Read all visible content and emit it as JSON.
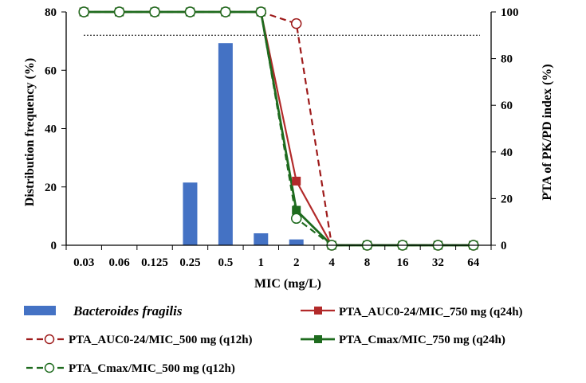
{
  "chart_data": {
    "type": "bar+line",
    "xlabel": "MIC (mg/L)",
    "ylabel_left": "Distribution  frequency (%)",
    "ylabel_right": "PTA of PK/PD index (%)",
    "categories": [
      "0.03",
      "0.06",
      "0.125",
      "0.25",
      "0.5",
      "1",
      "2",
      "4",
      "8",
      "16",
      "32",
      "64"
    ],
    "ylim_left": [
      0,
      80
    ],
    "ylim_right": [
      0,
      100
    ],
    "yticks_left": [
      "0",
      "20",
      "40",
      "60",
      "80"
    ],
    "yticks_right": [
      "0",
      "20",
      "40",
      "60",
      "80",
      "100"
    ],
    "reference_line_right": 90,
    "bar_series": {
      "name": "Bacteroides fragilis",
      "color": "#4472C4",
      "values": [
        0,
        0,
        0,
        21.5,
        69.3,
        4.1,
        2.0,
        0,
        0,
        0,
        0,
        0
      ]
    },
    "line_series": [
      {
        "name": "PTA_AUC0-24/MIC_750 mg (q24h)",
        "color": "#B22A2A",
        "dash": "solid",
        "marker": "square",
        "marker_fill": "#B22A2A",
        "values": [
          100,
          100,
          100,
          100,
          100,
          100,
          27.5,
          0,
          0,
          0,
          0,
          0
        ]
      },
      {
        "name": "PTA_AUC0-24/MIC_500 mg (q12h)",
        "color": "#9E1B1B",
        "dash": "dashed",
        "marker": "circle",
        "marker_fill": "#ffffff",
        "values": [
          100,
          100,
          100,
          100,
          100,
          100,
          95,
          0,
          0,
          0,
          0,
          0
        ]
      },
      {
        "name": "PTA_Cmax/MIC_750 mg (q24h)",
        "color": "#1E6B1E",
        "dash": "solid",
        "marker": "square",
        "marker_fill": "#1E6B1E",
        "values": [
          100,
          100,
          100,
          100,
          100,
          100,
          15,
          0,
          0,
          0,
          0,
          0
        ]
      },
      {
        "name": "PTA_Cmax/MIC_500 mg (q12h)",
        "color": "#1E6B1E",
        "dash": "dashed",
        "marker": "circle",
        "marker_fill": "#ffffff",
        "values": [
          100,
          100,
          100,
          100,
          100,
          100,
          11.5,
          0,
          0,
          0,
          0,
          0
        ]
      }
    ],
    "legend_position": "bottom"
  }
}
